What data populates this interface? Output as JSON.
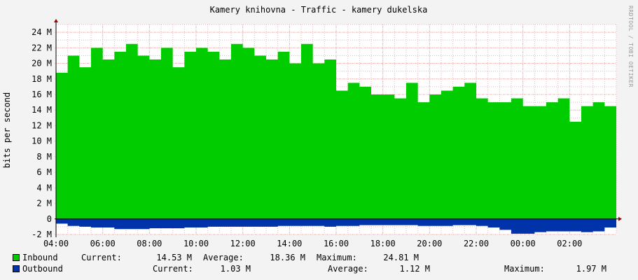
{
  "watermark": "RRDTOOL / TOBI OETIKER",
  "colors": {
    "background": "#f3f3f3",
    "canvas": "#ffffff",
    "grid": "#e9b7b7",
    "inbound": "#00cc00",
    "outbound": "#0033aa",
    "axis_arrow": "#990000"
  },
  "legend": {
    "inbound": {
      "name": "Inbound",
      "current_label": "Current:",
      "current": "14.53 M",
      "average_label": "Average:",
      "average": "18.36 M",
      "maximum_label": "Maximum:",
      "maximum": "24.81 M"
    },
    "outbound": {
      "name": "Outbound",
      "current_label": "Current:",
      "current": "1.03 M",
      "average_label": "Average:",
      "average": "1.12 M",
      "maximum_label": "Maximum:",
      "maximum": "1.97 M"
    }
  },
  "chart_data": {
    "type": "area",
    "title": "Kamery knihovna - Traffic - kamery dukelska",
    "ylabel": "bits per second",
    "ylim": [
      -2,
      25
    ],
    "grid": true,
    "legend_position": "bottom",
    "y_ticks": [
      {
        "value": -2,
        "label": "-2 M"
      },
      {
        "value": 0,
        "label": "0"
      },
      {
        "value": 2,
        "label": "2 M"
      },
      {
        "value": 4,
        "label": "4 M"
      },
      {
        "value": 6,
        "label": "6 M"
      },
      {
        "value": 8,
        "label": "8 M"
      },
      {
        "value": 10,
        "label": "10 M"
      },
      {
        "value": 12,
        "label": "12 M"
      },
      {
        "value": 14,
        "label": "14 M"
      },
      {
        "value": 16,
        "label": "16 M"
      },
      {
        "value": 18,
        "label": "18 M"
      },
      {
        "value": 20,
        "label": "20 M"
      },
      {
        "value": 22,
        "label": "22 M"
      },
      {
        "value": 24,
        "label": "24 M"
      }
    ],
    "x_ticks": [
      "04:00",
      "06:00",
      "08:00",
      "10:00",
      "12:00",
      "14:00",
      "16:00",
      "18:00",
      "20:00",
      "22:00",
      "00:00",
      "02:00"
    ],
    "x": [
      "04:00",
      "04:30",
      "05:00",
      "05:30",
      "06:00",
      "06:30",
      "07:00",
      "07:30",
      "08:00",
      "08:30",
      "09:00",
      "09:30",
      "10:00",
      "10:30",
      "11:00",
      "11:30",
      "12:00",
      "12:30",
      "13:00",
      "13:30",
      "14:00",
      "14:30",
      "15:00",
      "15:30",
      "16:00",
      "16:30",
      "17:00",
      "17:30",
      "18:00",
      "18:30",
      "19:00",
      "19:30",
      "20:00",
      "20:30",
      "21:00",
      "21:30",
      "22:00",
      "22:30",
      "23:00",
      "23:30",
      "00:00",
      "00:30",
      "01:00",
      "01:30",
      "02:00",
      "02:30",
      "03:00",
      "03:30"
    ],
    "series": [
      {
        "name": "Inbound",
        "values": [
          18.8,
          21.0,
          19.5,
          22.0,
          20.5,
          21.5,
          22.5,
          21.0,
          20.5,
          22.0,
          19.5,
          21.5,
          22.0,
          21.5,
          20.5,
          22.5,
          22.0,
          21.0,
          20.5,
          21.5,
          20.0,
          22.5,
          20.0,
          20.5,
          16.5,
          17.5,
          17.0,
          16.0,
          16.0,
          15.5,
          17.5,
          15.0,
          16.0,
          16.5,
          17.0,
          17.5,
          15.5,
          15.0,
          15.0,
          15.5,
          14.5,
          14.5,
          15.0,
          15.5,
          12.5,
          14.5,
          15.0,
          14.5
        ]
      },
      {
        "name": "Outbound",
        "values": [
          -0.6,
          -0.9,
          -1.0,
          -1.1,
          -1.1,
          -1.3,
          -1.3,
          -1.3,
          -1.2,
          -1.2,
          -1.2,
          -1.1,
          -1.1,
          -1.0,
          -1.0,
          -1.0,
          -1.0,
          -1.0,
          -1.0,
          -0.9,
          -0.9,
          -0.9,
          -0.9,
          -1.0,
          -0.9,
          -0.9,
          -0.8,
          -0.8,
          -0.8,
          -0.8,
          -0.8,
          -0.9,
          -0.9,
          -0.9,
          -0.8,
          -0.8,
          -0.9,
          -1.1,
          -1.4,
          -1.9,
          -1.9,
          -1.7,
          -1.6,
          -1.6,
          -1.6,
          -1.7,
          -1.6,
          -1.1
        ]
      }
    ]
  }
}
